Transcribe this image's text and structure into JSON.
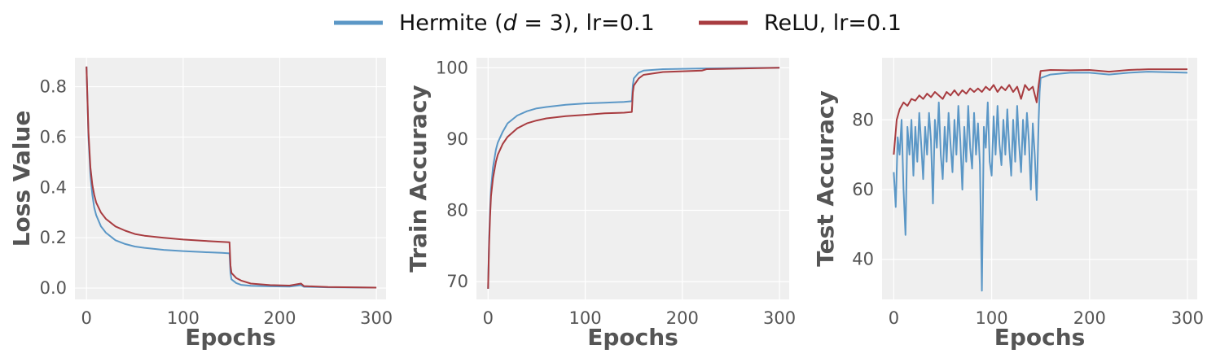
{
  "legend": {
    "placement": "top-center",
    "items": [
      {
        "label_html": "Hermite (<tspan font-style='italic'>d</tspan> = 3), lr=0.1",
        "label": "Hermite (d = 3), lr=0.1",
        "color": "#5b97c6"
      },
      {
        "label_html": "ReLU, lr=0.1",
        "label": "ReLU, lr=0.1",
        "color": "#a83c40"
      }
    ]
  },
  "style": {
    "panel_bg": "#efefef",
    "grid_color": "#ffffff",
    "tick_color": "#555555"
  },
  "chart_data": [
    {
      "type": "line",
      "xlabel": "Epochs",
      "ylabel": "Loss Value",
      "xlim": [
        -12,
        310
      ],
      "ylim": [
        -0.045,
        0.915
      ],
      "xticks": [
        0,
        100,
        200,
        300
      ],
      "yticks": [
        0.0,
        0.2,
        0.4,
        0.6,
        0.8
      ],
      "ytick_labels": [
        "0.0",
        "0.2",
        "0.4",
        "0.6",
        "0.8"
      ],
      "grid": true,
      "series": [
        {
          "name": "Hermite (d = 3), lr=0.1",
          "points": [
            [
              0,
              0.88
            ],
            [
              2,
              0.6
            ],
            [
              4,
              0.45
            ],
            [
              6,
              0.37
            ],
            [
              8,
              0.32
            ],
            [
              10,
              0.29
            ],
            [
              15,
              0.245
            ],
            [
              20,
              0.22
            ],
            [
              30,
              0.19
            ],
            [
              40,
              0.175
            ],
            [
              50,
              0.165
            ],
            [
              60,
              0.16
            ],
            [
              80,
              0.152
            ],
            [
              100,
              0.147
            ],
            [
              120,
              0.143
            ],
            [
              140,
              0.14
            ],
            [
              148,
              0.138
            ],
            [
              149,
              0.06
            ],
            [
              150,
              0.035
            ],
            [
              155,
              0.02
            ],
            [
              160,
              0.013
            ],
            [
              170,
              0.009
            ],
            [
              190,
              0.007
            ],
            [
              210,
              0.006
            ],
            [
              222,
              0.012
            ],
            [
              225,
              0.005
            ],
            [
              250,
              0.003
            ],
            [
              300,
              0.002
            ]
          ]
        },
        {
          "name": "ReLU, lr=0.1",
          "points": [
            [
              0,
              0.88
            ],
            [
              2,
              0.62
            ],
            [
              4,
              0.48
            ],
            [
              6,
              0.41
            ],
            [
              8,
              0.37
            ],
            [
              10,
              0.34
            ],
            [
              15,
              0.3
            ],
            [
              20,
              0.275
            ],
            [
              30,
              0.245
            ],
            [
              40,
              0.228
            ],
            [
              50,
              0.215
            ],
            [
              60,
              0.208
            ],
            [
              80,
              0.2
            ],
            [
              100,
              0.193
            ],
            [
              120,
              0.188
            ],
            [
              140,
              0.184
            ],
            [
              148,
              0.182
            ],
            [
              149,
              0.09
            ],
            [
              150,
              0.06
            ],
            [
              155,
              0.04
            ],
            [
              160,
              0.03
            ],
            [
              170,
              0.018
            ],
            [
              190,
              0.012
            ],
            [
              210,
              0.01
            ],
            [
              222,
              0.018
            ],
            [
              225,
              0.008
            ],
            [
              250,
              0.004
            ],
            [
              300,
              0.002
            ]
          ]
        }
      ]
    },
    {
      "type": "line",
      "xlabel": "Epochs",
      "ylabel": "Train Accuracy",
      "xlim": [
        -12,
        310
      ],
      "ylim": [
        67.5,
        101.4
      ],
      "xticks": [
        0,
        100,
        200,
        300
      ],
      "yticks": [
        70,
        80,
        90,
        100
      ],
      "ytick_labels": [
        "70",
        "80",
        "90",
        "100"
      ],
      "grid": true,
      "series": [
        {
          "name": "Hermite (d = 3), lr=0.1",
          "points": [
            [
              0,
              69
            ],
            [
              1,
              76
            ],
            [
              2,
              80
            ],
            [
              3,
              83
            ],
            [
              5,
              86
            ],
            [
              8,
              88.5
            ],
            [
              10,
              89.5
            ],
            [
              15,
              91
            ],
            [
              20,
              92.2
            ],
            [
              30,
              93.3
            ],
            [
              40,
              93.9
            ],
            [
              50,
              94.3
            ],
            [
              60,
              94.5
            ],
            [
              80,
              94.8
            ],
            [
              100,
              95
            ],
            [
              120,
              95.1
            ],
            [
              140,
              95.2
            ],
            [
              148,
              95.3
            ],
            [
              149,
              97.5
            ],
            [
              150,
              98.5
            ],
            [
              155,
              99.3
            ],
            [
              160,
              99.6
            ],
            [
              180,
              99.8
            ],
            [
              220,
              99.9
            ],
            [
              300,
              100
            ]
          ]
        },
        {
          "name": "ReLU, lr=0.1",
          "points": [
            [
              0,
              69
            ],
            [
              1,
              75
            ],
            [
              2,
              79
            ],
            [
              3,
              82
            ],
            [
              5,
              84.5
            ],
            [
              8,
              86.8
            ],
            [
              10,
              87.8
            ],
            [
              15,
              89.3
            ],
            [
              20,
              90.3
            ],
            [
              30,
              91.5
            ],
            [
              40,
              92.2
            ],
            [
              50,
              92.6
            ],
            [
              60,
              92.9
            ],
            [
              80,
              93.2
            ],
            [
              100,
              93.4
            ],
            [
              120,
              93.6
            ],
            [
              140,
              93.7
            ],
            [
              148,
              93.8
            ],
            [
              149,
              96.5
            ],
            [
              150,
              97.5
            ],
            [
              155,
              98.5
            ],
            [
              160,
              99
            ],
            [
              180,
              99.4
            ],
            [
              220,
              99.6
            ],
            [
              225,
              99.8
            ],
            [
              300,
              100
            ]
          ]
        }
      ]
    },
    {
      "type": "line",
      "xlabel": "Epochs",
      "ylabel": "Test Accuracy",
      "xlim": [
        -12,
        310
      ],
      "ylim": [
        28.5,
        97.8
      ],
      "xticks": [
        0,
        100,
        200,
        300
      ],
      "yticks": [
        40,
        60,
        80
      ],
      "ytick_labels": [
        "40",
        "60",
        "80"
      ],
      "grid": true,
      "series": [
        {
          "name": "Hermite (d = 3), lr=0.1",
          "points": [
            [
              0,
              65
            ],
            [
              2,
              55
            ],
            [
              4,
              75
            ],
            [
              6,
              70
            ],
            [
              8,
              80
            ],
            [
              10,
              60
            ],
            [
              12,
              47
            ],
            [
              14,
              78
            ],
            [
              16,
              70
            ],
            [
              18,
              80
            ],
            [
              20,
              64
            ],
            [
              22,
              78
            ],
            [
              24,
              68
            ],
            [
              26,
              82
            ],
            [
              28,
              73
            ],
            [
              30,
              63
            ],
            [
              32,
              78
            ],
            [
              34,
              70
            ],
            [
              36,
              82
            ],
            [
              38,
              74
            ],
            [
              40,
              56
            ],
            [
              42,
              80
            ],
            [
              44,
              72
            ],
            [
              46,
              85
            ],
            [
              48,
              70
            ],
            [
              50,
              63
            ],
            [
              52,
              78
            ],
            [
              54,
              68
            ],
            [
              56,
              82
            ],
            [
              58,
              73
            ],
            [
              60,
              65
            ],
            [
              62,
              80
            ],
            [
              64,
              70
            ],
            [
              66,
              84
            ],
            [
              68,
              74
            ],
            [
              70,
              60
            ],
            [
              72,
              78
            ],
            [
              74,
              68
            ],
            [
              76,
              84
            ],
            [
              78,
              72
            ],
            [
              80,
              66
            ],
            [
              82,
              82
            ],
            [
              84,
              70
            ],
            [
              86,
              79
            ],
            [
              88,
              67
            ],
            [
              90,
              31
            ],
            [
              92,
              78
            ],
            [
              94,
              72
            ],
            [
              96,
              85
            ],
            [
              98,
              68
            ],
            [
              100,
              64
            ],
            [
              102,
              81
            ],
            [
              104,
              70
            ],
            [
              106,
              84
            ],
            [
              108,
              73
            ],
            [
              110,
              67
            ],
            [
              112,
              80
            ],
            [
              114,
              70
            ],
            [
              116,
              83
            ],
            [
              118,
              72
            ],
            [
              120,
              64
            ],
            [
              122,
              80
            ],
            [
              124,
              68
            ],
            [
              126,
              84
            ],
            [
              128,
              73
            ],
            [
              130,
              65
            ],
            [
              132,
              80
            ],
            [
              134,
              70
            ],
            [
              136,
              82
            ],
            [
              138,
              74
            ],
            [
              140,
              60
            ],
            [
              142,
              79
            ],
            [
              144,
              70
            ],
            [
              146,
              57
            ],
            [
              148,
              80
            ],
            [
              149,
              88
            ],
            [
              150,
              92
            ],
            [
              160,
              93
            ],
            [
              180,
              93.5
            ],
            [
              200,
              93.5
            ],
            [
              220,
              93
            ],
            [
              240,
              93.5
            ],
            [
              260,
              93.8
            ],
            [
              300,
              93.5
            ]
          ]
        },
        {
          "name": "ReLU, lr=0.1",
          "points": [
            [
              0,
              70
            ],
            [
              3,
              80
            ],
            [
              6,
              83
            ],
            [
              10,
              85
            ],
            [
              14,
              84
            ],
            [
              18,
              86
            ],
            [
              22,
              85.5
            ],
            [
              26,
              87
            ],
            [
              30,
              86
            ],
            [
              34,
              87.5
            ],
            [
              38,
              86.5
            ],
            [
              42,
              88
            ],
            [
              46,
              87
            ],
            [
              50,
              86
            ],
            [
              54,
              88
            ],
            [
              58,
              87
            ],
            [
              62,
              88.5
            ],
            [
              66,
              87
            ],
            [
              70,
              88.5
            ],
            [
              74,
              87.5
            ],
            [
              78,
              89
            ],
            [
              82,
              88
            ],
            [
              86,
              89
            ],
            [
              90,
              88
            ],
            [
              94,
              89.5
            ],
            [
              98,
              88.5
            ],
            [
              102,
              90
            ],
            [
              106,
              88
            ],
            [
              110,
              89.5
            ],
            [
              114,
              88.5
            ],
            [
              118,
              90
            ],
            [
              122,
              88
            ],
            [
              126,
              89.5
            ],
            [
              130,
              86
            ],
            [
              134,
              90
            ],
            [
              138,
              88.5
            ],
            [
              142,
              89.5
            ],
            [
              146,
              85
            ],
            [
              148,
              90
            ],
            [
              149,
              92
            ],
            [
              150,
              94
            ],
            [
              160,
              94.3
            ],
            [
              180,
              94.2
            ],
            [
              200,
              94.3
            ],
            [
              220,
              93.8
            ],
            [
              240,
              94.3
            ],
            [
              260,
              94.5
            ],
            [
              300,
              94.5
            ]
          ]
        }
      ]
    }
  ]
}
